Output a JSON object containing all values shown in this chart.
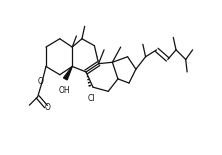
{
  "bg_color": "#ffffff",
  "line_color": "#111111",
  "line_width": 0.9,
  "figsize": [
    2.22,
    1.55
  ],
  "dpi": 100,
  "xlim": [
    -0.05,
    1.15
  ],
  "ylim": [
    -0.05,
    1.05
  ]
}
